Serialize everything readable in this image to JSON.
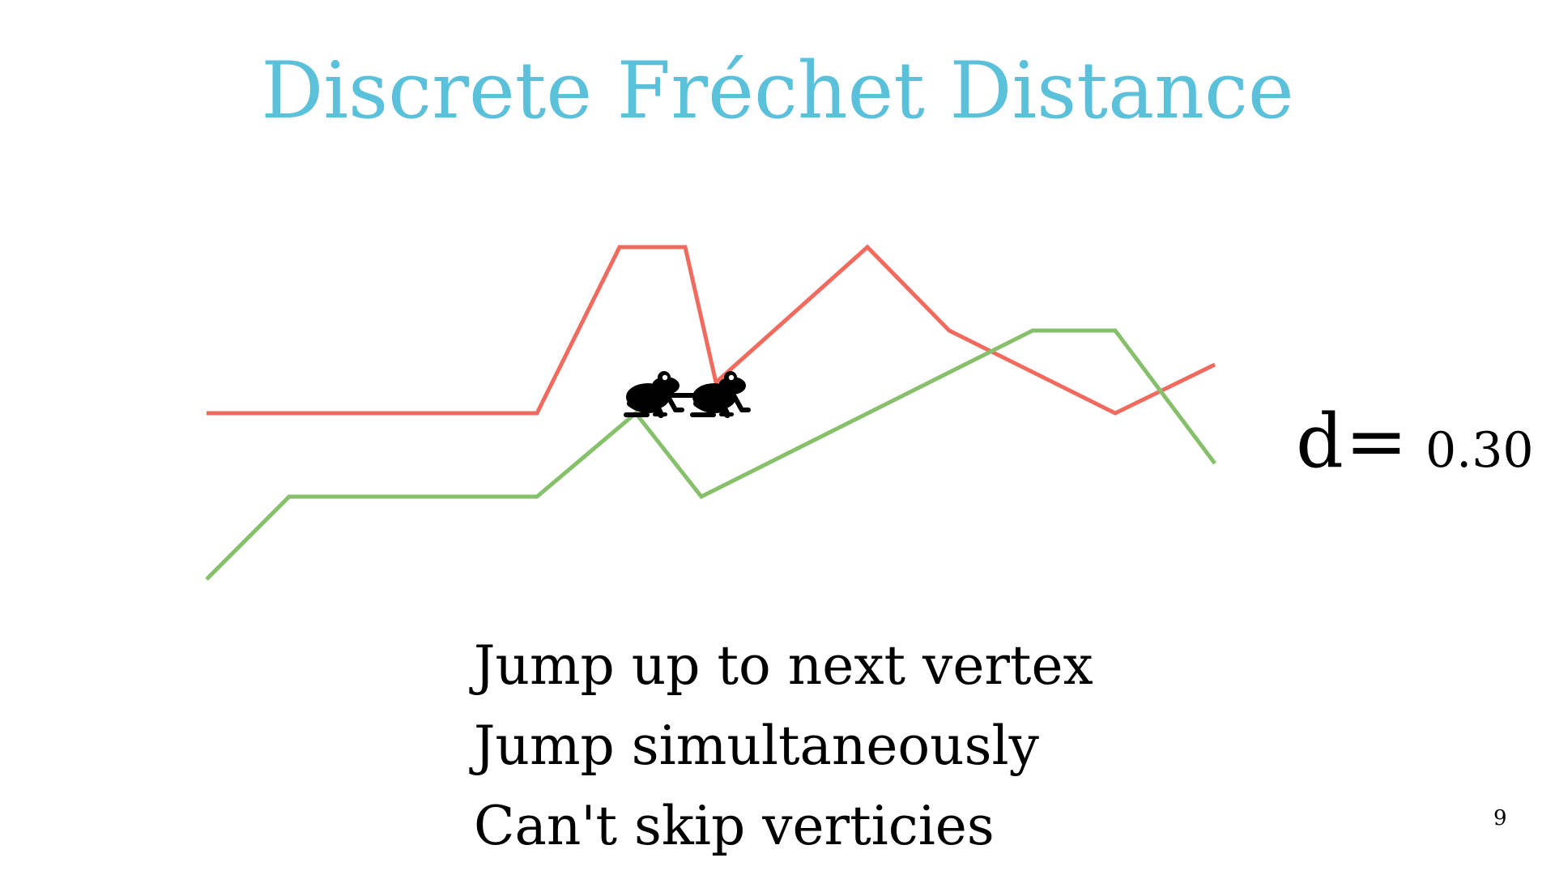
{
  "slide": {
    "title": "Discrete Fréchet Distance",
    "distance": {
      "label": "d",
      "equals": "=",
      "value": "0.30"
    },
    "bullets": [
      "Jump up to next vertex",
      "Jump simultaneously",
      "Can't skip verticies"
    ],
    "page_number": "9"
  },
  "diagram": {
    "red_curve_color": "#f06b5e",
    "green_curve_color": "#86c06a",
    "leash_color": "#000000",
    "frog_icon": "frog-icon"
  }
}
